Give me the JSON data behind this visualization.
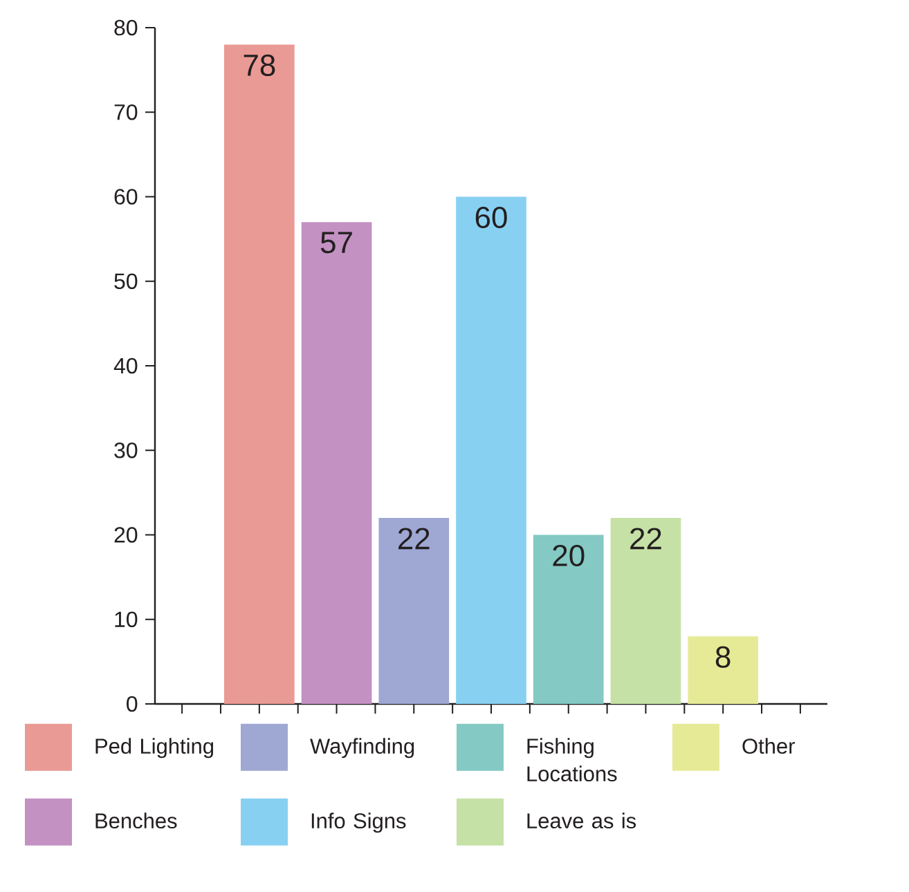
{
  "chart_data": {
    "type": "bar",
    "categories": [
      null
    ],
    "series": [
      {
        "name": "Ped Lighting",
        "color": "#ea9a95",
        "values": [
          78
        ]
      },
      {
        "name": "Benches",
        "color": "#c391c2",
        "values": [
          57
        ]
      },
      {
        "name": "Wayfinding",
        "color": "#9fa7d3",
        "values": [
          22
        ]
      },
      {
        "name": "Info Signs",
        "color": "#88d0f2",
        "values": [
          60
        ]
      },
      {
        "name": "Fishing Locations",
        "color": "#84c9c3",
        "values": [
          20
        ]
      },
      {
        "name": "Leave as is",
        "color": "#c6e1a6",
        "values": [
          22
        ]
      },
      {
        "name": "Other",
        "color": "#e6ea96",
        "values": [
          8
        ]
      }
    ],
    "ylim": [
      0,
      80
    ],
    "yticks": [
      0,
      10,
      20,
      30,
      40,
      50,
      60,
      70,
      80
    ],
    "data_labels": true,
    "legend": "bottom"
  }
}
